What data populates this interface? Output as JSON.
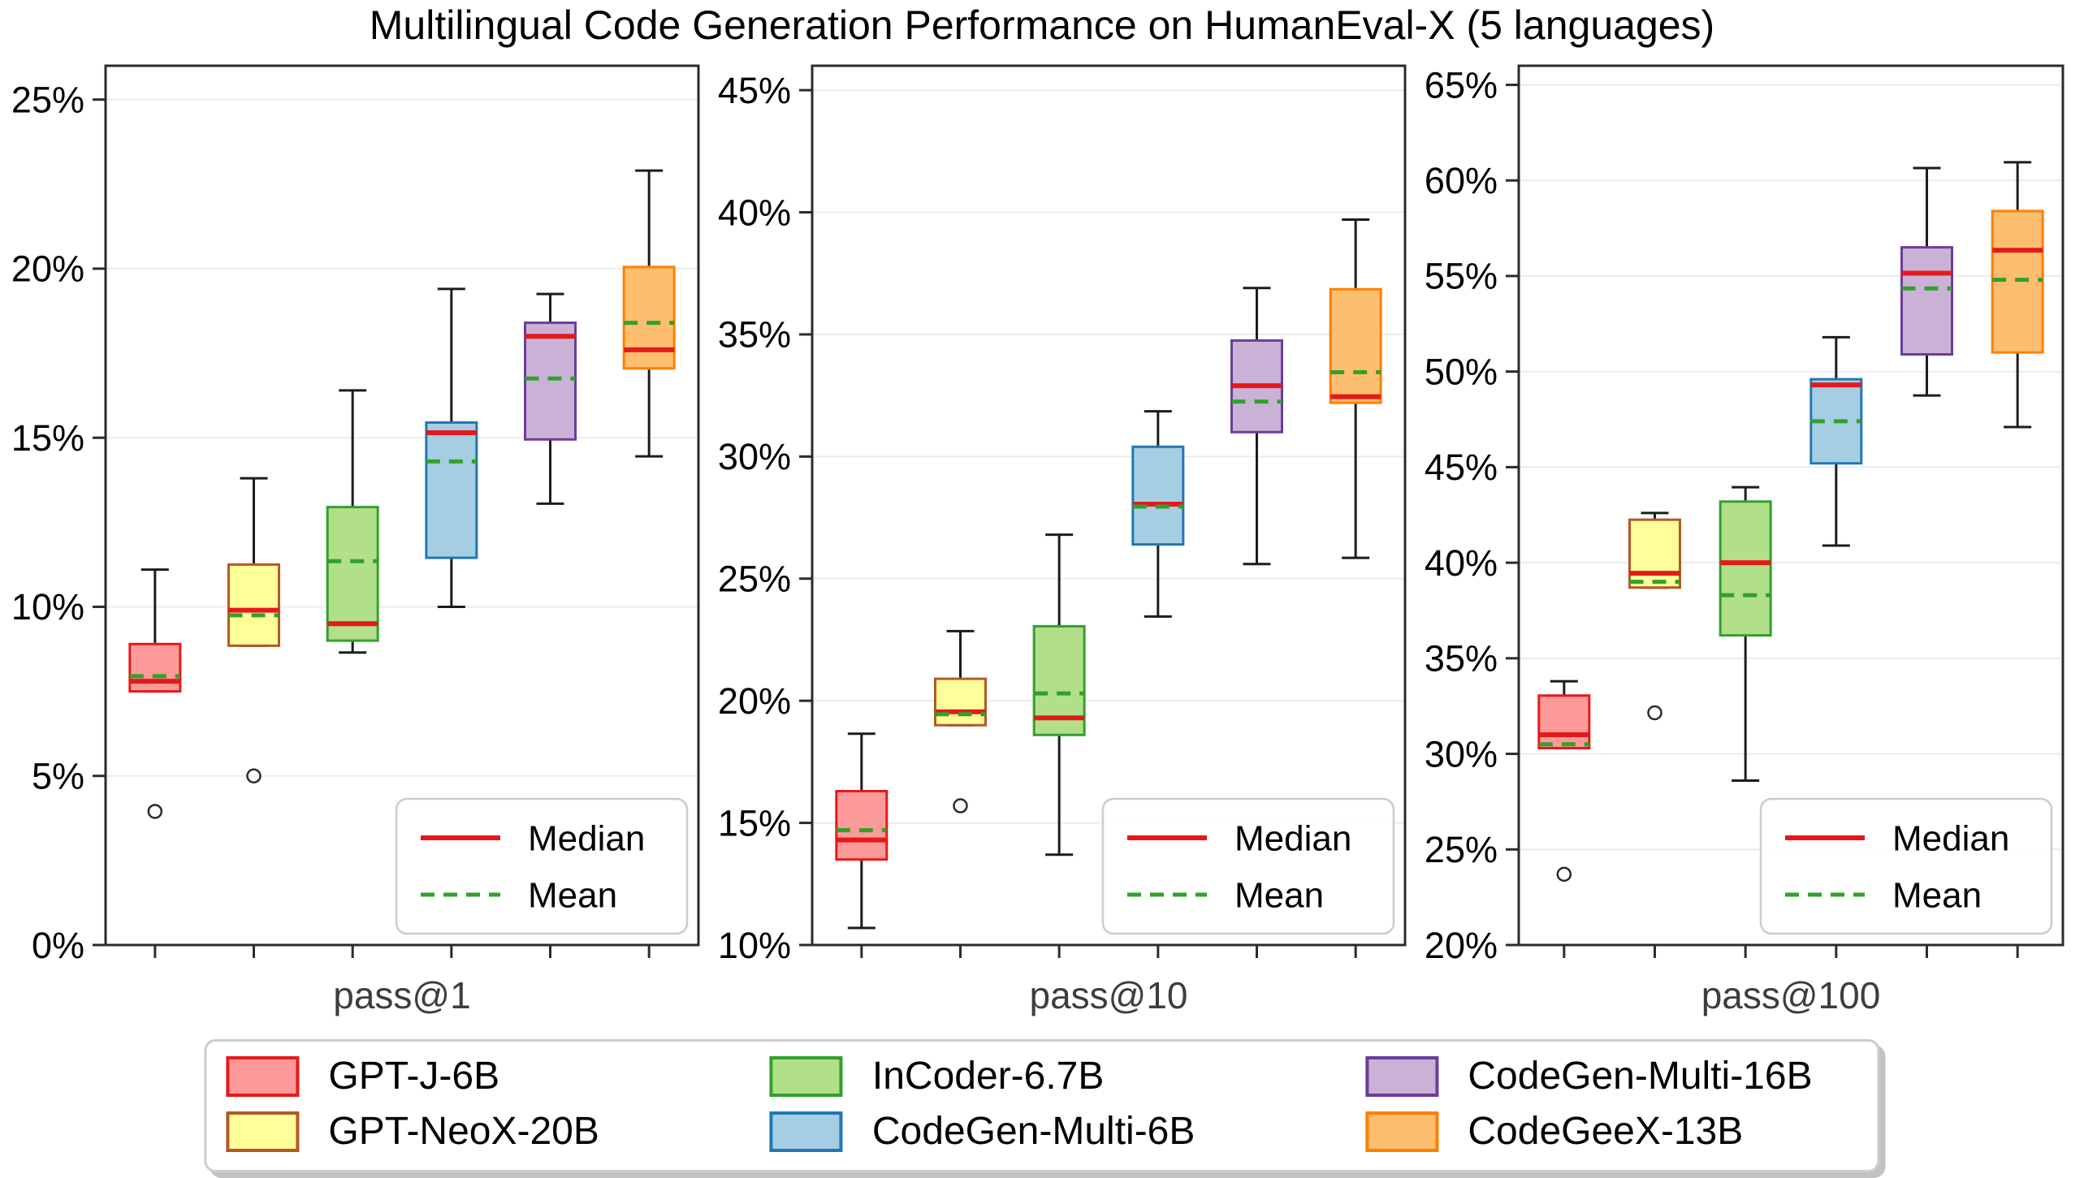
{
  "title": "Multilingual Code Generation Performance on HumanEval-X (5 languages)",
  "legend": {
    "median_label": "Median",
    "mean_label": "Mean",
    "median_color": "#e31a1c",
    "mean_color": "#33a02c"
  },
  "models": [
    {
      "name": "GPT-J-6B",
      "fill": "#fb9a99",
      "edge": "#e31a1c"
    },
    {
      "name": "GPT-NeoX-20B",
      "fill": "#ffff99",
      "edge": "#b15928"
    },
    {
      "name": "InCoder-6.7B",
      "fill": "#b2df8a",
      "edge": "#33a02c"
    },
    {
      "name": "CodeGen-Multi-6B",
      "fill": "#a6cee3",
      "edge": "#1f78b4"
    },
    {
      "name": "CodeGen-Multi-16B",
      "fill": "#cab2d6",
      "edge": "#6a3d9a"
    },
    {
      "name": "CodeGeeX-13B",
      "fill": "#fdbf6f",
      "edge": "#ff7f00"
    }
  ],
  "chart_data": [
    {
      "type": "box",
      "xlabel": "pass@1",
      "ylim": [
        0,
        26
      ],
      "yticks": [
        0,
        5,
        10,
        15,
        20,
        25
      ],
      "ytick_suffix": "%",
      "grid": true,
      "legend_position": "lower right",
      "series": [
        {
          "model": "GPT-J-6B",
          "whislo": 7.5,
          "q1": 7.5,
          "med": 7.8,
          "mean": 7.95,
          "q3": 8.9,
          "whishi": 11.1,
          "outliers": [
            3.95
          ]
        },
        {
          "model": "GPT-NeoX-20B",
          "whislo": 8.85,
          "q1": 8.85,
          "med": 9.9,
          "mean": 9.75,
          "q3": 11.25,
          "whishi": 13.8,
          "outliers": [
            5.0
          ]
        },
        {
          "model": "InCoder-6.7B",
          "whislo": 8.65,
          "q1": 9.0,
          "med": 9.5,
          "mean": 11.35,
          "q3": 12.95,
          "whishi": 16.4,
          "outliers": []
        },
        {
          "model": "CodeGen-Multi-6B",
          "whislo": 10.0,
          "q1": 11.45,
          "med": 15.15,
          "mean": 14.3,
          "q3": 15.45,
          "whishi": 19.4,
          "outliers": []
        },
        {
          "model": "CodeGen-Multi-16B",
          "whislo": 13.05,
          "q1": 14.95,
          "med": 18.0,
          "mean": 16.75,
          "q3": 18.4,
          "whishi": 19.25,
          "outliers": []
        },
        {
          "model": "CodeGeeX-13B",
          "whislo": 14.45,
          "q1": 17.05,
          "med": 17.6,
          "mean": 18.4,
          "q3": 20.05,
          "whishi": 22.9,
          "outliers": []
        }
      ]
    },
    {
      "type": "box",
      "xlabel": "pass@10",
      "ylim": [
        10,
        46
      ],
      "yticks": [
        10,
        15,
        20,
        25,
        30,
        35,
        40,
        45
      ],
      "ytick_suffix": "%",
      "grid": true,
      "legend_position": "lower right",
      "series": [
        {
          "model": "GPT-J-6B",
          "whislo": 10.7,
          "q1": 13.5,
          "med": 14.3,
          "mean": 14.7,
          "q3": 16.3,
          "whishi": 18.65,
          "outliers": []
        },
        {
          "model": "GPT-NeoX-20B",
          "whislo": 19.0,
          "q1": 19.0,
          "med": 19.55,
          "mean": 19.45,
          "q3": 20.9,
          "whishi": 22.85,
          "outliers": [
            15.7
          ]
        },
        {
          "model": "InCoder-6.7B",
          "whislo": 13.7,
          "q1": 18.6,
          "med": 19.3,
          "mean": 20.3,
          "q3": 23.05,
          "whishi": 26.8,
          "outliers": []
        },
        {
          "model": "CodeGen-Multi-6B",
          "whislo": 23.45,
          "q1": 26.4,
          "med": 28.05,
          "mean": 27.95,
          "q3": 30.4,
          "whishi": 31.85,
          "outliers": []
        },
        {
          "model": "CodeGen-Multi-16B",
          "whislo": 25.6,
          "q1": 31.0,
          "med": 32.9,
          "mean": 32.25,
          "q3": 34.75,
          "whishi": 36.9,
          "outliers": []
        },
        {
          "model": "CodeGeeX-13B",
          "whislo": 25.85,
          "q1": 32.2,
          "med": 32.45,
          "mean": 33.45,
          "q3": 36.85,
          "whishi": 39.7,
          "outliers": []
        }
      ]
    },
    {
      "type": "box",
      "xlabel": "pass@100",
      "ylim": [
        20,
        66
      ],
      "yticks": [
        20,
        25,
        30,
        35,
        40,
        45,
        50,
        55,
        60,
        65
      ],
      "ytick_suffix": "%",
      "grid": true,
      "legend_position": "lower right",
      "series": [
        {
          "model": "GPT-J-6B",
          "whislo": 30.3,
          "q1": 30.3,
          "med": 31.0,
          "mean": 30.5,
          "q3": 33.05,
          "whishi": 33.8,
          "outliers": [
            23.7
          ]
        },
        {
          "model": "GPT-NeoX-20B",
          "whislo": 38.7,
          "q1": 38.7,
          "med": 39.45,
          "mean": 39.0,
          "q3": 42.25,
          "whishi": 42.6,
          "outliers": [
            32.15
          ]
        },
        {
          "model": "InCoder-6.7B",
          "whislo": 28.6,
          "q1": 36.2,
          "med": 40.0,
          "mean": 38.3,
          "q3": 43.2,
          "whishi": 43.95,
          "outliers": []
        },
        {
          "model": "CodeGen-Multi-6B",
          "whislo": 40.9,
          "q1": 45.2,
          "med": 49.3,
          "mean": 47.4,
          "q3": 49.6,
          "whishi": 51.8,
          "outliers": []
        },
        {
          "model": "CodeGen-Multi-16B",
          "whislo": 48.75,
          "q1": 50.9,
          "med": 55.15,
          "mean": 54.35,
          "q3": 56.5,
          "whishi": 60.65,
          "outliers": []
        },
        {
          "model": "CodeGeeX-13B",
          "whislo": 47.1,
          "q1": 51.0,
          "med": 56.35,
          "mean": 54.8,
          "q3": 58.4,
          "whishi": 60.95,
          "outliers": []
        }
      ]
    }
  ]
}
